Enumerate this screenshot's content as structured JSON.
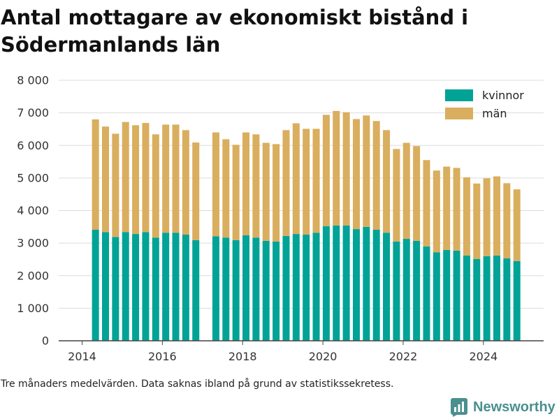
{
  "chart_data": {
    "type": "bar",
    "stacked": true,
    "title": "Antal mottagare av ekonomiskt bistånd i Södermanlands län",
    "x": [
      "2014-05",
      "2014-08",
      "2014-11",
      "2015-02",
      "2015-05",
      "2015-08",
      "2015-11",
      "2016-02",
      "2016-05",
      "2016-08",
      "2016-11",
      "2017-02",
      "2017-05",
      "2017-08",
      "2017-11",
      "2018-02",
      "2018-05",
      "2018-08",
      "2018-11",
      "2019-02",
      "2019-05",
      "2019-08",
      "2019-11",
      "2020-02",
      "2020-05",
      "2020-08",
      "2020-11",
      "2021-02",
      "2021-05",
      "2021-08",
      "2021-11",
      "2022-02",
      "2022-05",
      "2022-08",
      "2022-11",
      "2023-02",
      "2023-05",
      "2023-08",
      "2023-11",
      "2024-02",
      "2024-05",
      "2024-08",
      "2024-11"
    ],
    "series": [
      {
        "name": "kvinnor",
        "color": "#00a396",
        "values": [
          3410,
          3340,
          3190,
          3340,
          3280,
          3340,
          3170,
          3320,
          3320,
          3260,
          3090,
          null,
          3210,
          3170,
          3090,
          3240,
          3170,
          3070,
          3050,
          3220,
          3280,
          3260,
          3320,
          3520,
          3540,
          3540,
          3430,
          3500,
          3410,
          3320,
          3050,
          3130,
          3070,
          2900,
          2720,
          2790,
          2770,
          2620,
          2510,
          2600,
          2620,
          2530,
          2450
        ]
      },
      {
        "name": "män",
        "color": "#d9ae5e",
        "values": [
          3390,
          3240,
          3170,
          3380,
          3340,
          3350,
          3170,
          3320,
          3320,
          3210,
          3000,
          null,
          3190,
          3020,
          2930,
          3160,
          3170,
          3010,
          2990,
          3250,
          3400,
          3250,
          3190,
          3420,
          3520,
          3480,
          3380,
          3420,
          3340,
          3150,
          2840,
          2950,
          2910,
          2650,
          2510,
          2560,
          2540,
          2400,
          2320,
          2390,
          2430,
          2310,
          2200
        ]
      }
    ],
    "ylim": [
      0,
      8000
    ],
    "yticks": [
      0,
      1000,
      2000,
      3000,
      4000,
      5000,
      6000,
      7000,
      8000
    ],
    "ytick_labels": [
      "0",
      "1 000",
      "2 000",
      "3 000",
      "4 000",
      "5 000",
      "6 000",
      "7 000",
      "8 000"
    ],
    "xlim": [
      "2013-06",
      "2025-07"
    ],
    "xtick_labels": [
      "2014",
      "2016",
      "2018",
      "2020",
      "2022",
      "2024"
    ],
    "grid": "horizontal",
    "legend_position": "top-right"
  },
  "note": "Tre månaders medelvärden. Data saknas ibland på grund av statistikssekretess.",
  "logo": {
    "text": "Newsworthy",
    "icon": "newsworthy-logo-icon",
    "color": "#4a908e"
  }
}
